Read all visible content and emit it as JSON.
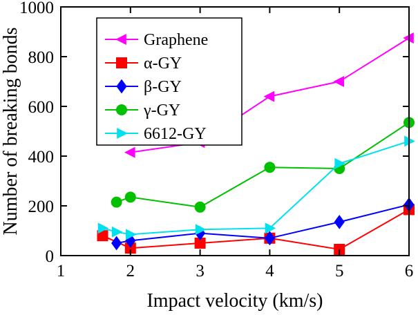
{
  "chart_data": {
    "type": "line",
    "title": "",
    "xlabel": "Impact velocity (km/s)",
    "ylabel": "Number of breaking bonds",
    "xlim": [
      1,
      6
    ],
    "ylim": [
      0,
      1000
    ],
    "xticks": [
      1,
      2,
      3,
      4,
      5,
      6
    ],
    "yticks": [
      0,
      200,
      400,
      600,
      800,
      1000
    ],
    "grid": false,
    "legend_position": "top-left",
    "background_color": "#ffffff",
    "axis_color": "#000000",
    "series": [
      {
        "name": "Graphene",
        "color": "#ff00ff",
        "marker": "triangle-left",
        "x": [
          2,
          3,
          4,
          5,
          6
        ],
        "y": [
          415,
          455,
          640,
          700,
          875
        ]
      },
      {
        "name": "α-GY",
        "color": "#ff0000",
        "marker": "square",
        "x": [
          1.6,
          2,
          3,
          4,
          5,
          6
        ],
        "y": [
          80,
          30,
          50,
          70,
          25,
          185
        ]
      },
      {
        "name": "β-GY",
        "color": "#0000ff",
        "marker": "diamond",
        "x": [
          1.8,
          2,
          3,
          4,
          5,
          6
        ],
        "y": [
          50,
          60,
          90,
          70,
          135,
          205
        ]
      },
      {
        "name": "γ-GY",
        "color": "#00c000",
        "marker": "circle",
        "x": [
          1.8,
          2,
          3,
          4,
          5,
          6
        ],
        "y": [
          215,
          235,
          195,
          355,
          350,
          535
        ]
      },
      {
        "name": "6612-GY",
        "color": "#00e0ee",
        "marker": "triangle-right",
        "x": [
          1.6,
          1.8,
          2,
          3,
          4,
          5,
          6
        ],
        "y": [
          110,
          95,
          85,
          105,
          110,
          370,
          460
        ]
      }
    ]
  }
}
